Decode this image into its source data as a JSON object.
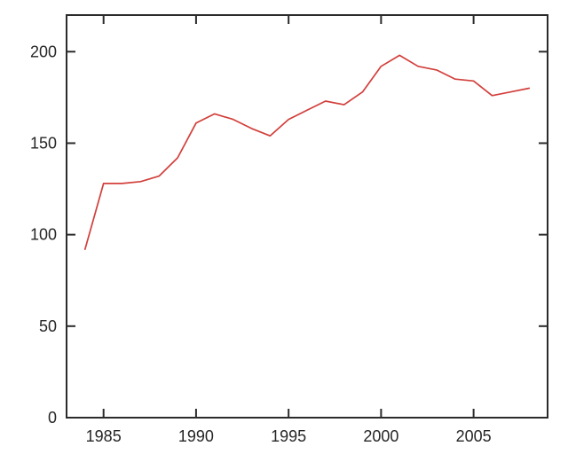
{
  "chart_data": {
    "type": "line",
    "title": "",
    "xlabel": "",
    "ylabel": "",
    "background_color": "#ffffff",
    "axis_color": "#2b2b2b",
    "label_color": "#262626",
    "grid": false,
    "legend": "none",
    "xlim": [
      1983,
      2009
    ],
    "ylim": [
      0,
      220
    ],
    "xticks": [
      {
        "value": 1985,
        "label": "1985"
      },
      {
        "value": 1990,
        "label": "1990"
      },
      {
        "value": 1995,
        "label": "1995"
      },
      {
        "value": 2000,
        "label": "2000"
      },
      {
        "value": 2005,
        "label": "2005"
      }
    ],
    "yticks": [
      {
        "value": 0,
        "label": "0"
      },
      {
        "value": 50,
        "label": "50"
      },
      {
        "value": 100,
        "label": "100"
      },
      {
        "value": 150,
        "label": "150"
      },
      {
        "value": 200,
        "label": "200"
      }
    ],
    "series": [
      {
        "name": "red-line",
        "color": "#d23f3b",
        "x": [
          1984,
          1985,
          1986,
          1987,
          1988,
          1989,
          1990,
          1991,
          1992,
          1993,
          1994,
          1995,
          1996,
          1997,
          1998,
          1999,
          2000,
          2001,
          2002,
          2003,
          2004,
          2005,
          2006,
          2007,
          2008
        ],
        "values": [
          92,
          128,
          128,
          129,
          132,
          142,
          161,
          166,
          163,
          158,
          154,
          163,
          168,
          173,
          171,
          178,
          192,
          198,
          192,
          190,
          185,
          184,
          176,
          178,
          180
        ]
      }
    ]
  }
}
